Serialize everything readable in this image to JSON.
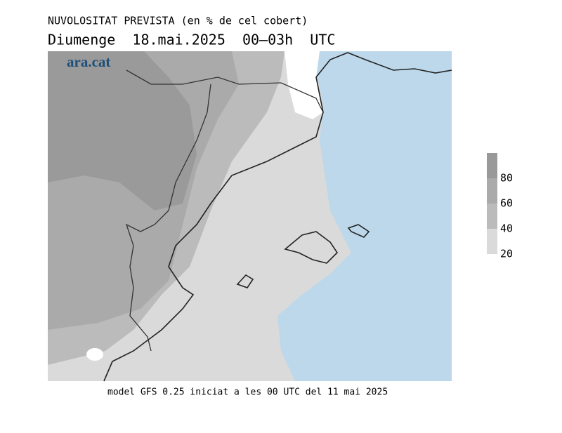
{
  "header": {
    "title": "NUVOLOSITAT PREVISTA (en % de cel cobert)",
    "subtitle": "Diumenge  18.mai.2025  00–03h  UTC"
  },
  "map": {
    "logo": "ara.cat"
  },
  "legend": {
    "ticks": [
      80,
      60,
      40,
      20
    ]
  },
  "footer": {
    "text": "model GFS 0.25 iniciat a les 00 UTC del 11 mai 2025"
  }
}
